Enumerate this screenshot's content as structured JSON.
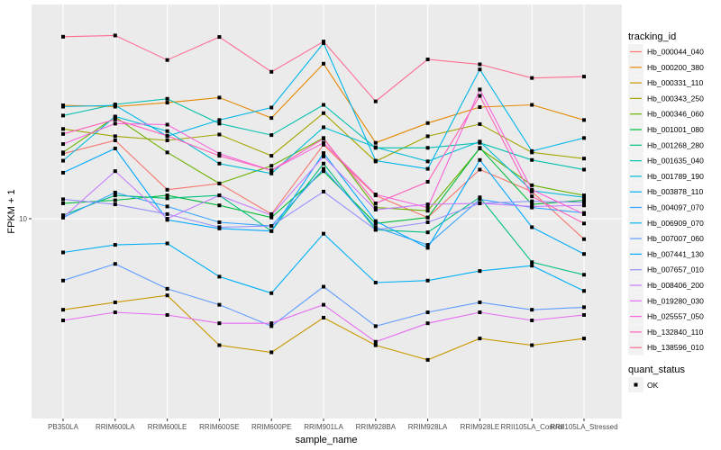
{
  "chart_data": {
    "type": "line",
    "title": "",
    "xlabel": "sample_name",
    "ylabel": "FPKM + 1",
    "y_scale": "log10",
    "y_ticks": [
      10
    ],
    "y_tick_labels": [
      "10"
    ],
    "grid": true,
    "legend_placement": "right",
    "categories": [
      "PB350LA",
      "RRIM600LA",
      "RRIM600LE",
      "RRIM600SE",
      "RRIM600PE",
      "RRIM901LA",
      "RRIM928BA",
      "RRIM928LA",
      "RRIM928LE",
      "RRII105LA_Control",
      "RRII105LA_Stressed"
    ],
    "legend": {
      "color_title": "tracking_id",
      "shape_title": "quant_status",
      "shape_entries": [
        "OK"
      ]
    },
    "series": [
      {
        "name": "Hb_000044_040",
        "color": "#F8766D",
        "values": [
          17.4,
          19.5,
          12.8,
          13.5,
          10.4,
          18.8,
          12.2,
          10.1,
          15.2,
          12.6,
          8.4
        ]
      },
      {
        "name": "Hb_000200_380",
        "color": "#E58700",
        "values": [
          26.3,
          26.0,
          26.9,
          28.1,
          23.6,
          37.5,
          19.1,
          22.6,
          25.9,
          26.4,
          23.2
        ]
      },
      {
        "name": "Hb_000331_110",
        "color": "#C99800",
        "values": [
          4.6,
          4.9,
          5.2,
          3.4,
          3.2,
          4.3,
          3.4,
          3.0,
          3.6,
          3.4,
          3.6
        ]
      },
      {
        "name": "Hb_000343_250",
        "color": "#A3A500",
        "values": [
          21.5,
          20.2,
          19.5,
          20.5,
          17.1,
          24.6,
          16.3,
          20.2,
          22.4,
          17.6,
          16.7
        ]
      },
      {
        "name": "Hb_000346_060",
        "color": "#6BB100",
        "values": [
          17.6,
          23.8,
          17.6,
          13.5,
          15.7,
          19.9,
          11.0,
          10.7,
          18.2,
          13.3,
          12.2
        ]
      },
      {
        "name": "Hb_001001_080",
        "color": "#00BA38",
        "values": [
          11.4,
          11.7,
          12.2,
          11.2,
          10.1,
          15.0,
          9.6,
          10.1,
          18.3,
          11.3,
          11.7
        ]
      },
      {
        "name": "Hb_001268_280",
        "color": "#00BF7D",
        "values": [
          10.3,
          12.2,
          11.9,
          12.2,
          9.0,
          16.0,
          9.1,
          8.9,
          12.0,
          6.9,
          6.2
        ]
      },
      {
        "name": "Hb_001635_040",
        "color": "#00C0AF",
        "values": [
          24.1,
          26.5,
          27.8,
          22.5,
          20.4,
          26.4,
          18.3,
          18.3,
          19.1,
          16.5,
          15.2
        ]
      },
      {
        "name": "Hb_001789_190",
        "color": "#00BCD8",
        "values": [
          16.4,
          23.9,
          21.1,
          16.0,
          14.7,
          21.8,
          18.4,
          16.3,
          19.3,
          12.7,
          12.0
        ]
      },
      {
        "name": "Hb_003878_110",
        "color": "#00B0F6",
        "values": [
          7.5,
          8.0,
          8.1,
          6.1,
          5.3,
          8.8,
          5.8,
          5.9,
          6.4,
          6.7,
          5.4
        ]
      },
      {
        "name": "Hb_004097_070",
        "color": "#35A2FF",
        "values": [
          10.1,
          12.5,
          11.1,
          9.7,
          9.4,
          15.3,
          9.3,
          8.0,
          11.8,
          11.0,
          10.5
        ]
      },
      {
        "name": "Hb_006909_070",
        "color": "#00B6EB",
        "values": [
          26.0,
          26.3,
          20.2,
          23.2,
          25.8,
          44.7,
          16.4,
          15.3,
          35.7,
          17.8,
          19.9
        ]
      },
      {
        "name": "Hb_007007_060",
        "color": "#619CFF",
        "values": [
          5.9,
          6.8,
          5.5,
          4.8,
          4.0,
          5.6,
          4.0,
          4.5,
          4.9,
          4.6,
          4.7
        ]
      },
      {
        "name": "Hb_007441_130",
        "color": "#00A9FF",
        "values": [
          14.8,
          18.2,
          9.9,
          9.2,
          9.0,
          17.5,
          9.8,
          7.8,
          16.5,
          9.3,
          7.4
        ]
      },
      {
        "name": "Hb_007657_010",
        "color": "#9590FF",
        "values": [
          11.8,
          11.3,
          10.4,
          9.3,
          9.4,
          12.6,
          9.1,
          9.7,
          11.4,
          11.6,
          11.5
        ]
      },
      {
        "name": "Hb_008406_200",
        "color": "#C77CFF",
        "values": [
          10.1,
          15.0,
          10.0,
          12.2,
          10.3,
          17.0,
          10.8,
          11.3,
          11.4,
          11.1,
          11.2
        ]
      },
      {
        "name": "Hb_019280_030",
        "color": "#E76BF3",
        "values": [
          4.2,
          4.5,
          4.4,
          4.1,
          4.1,
          4.8,
          3.5,
          4.1,
          4.5,
          4.2,
          4.4
        ]
      },
      {
        "name": "Hb_025557_050",
        "color": "#FA62DB",
        "values": [
          18.9,
          22.5,
          22.3,
          17.4,
          15.1,
          19.1,
          12.3,
          11.0,
          30.1,
          12.8,
          10.4
        ]
      },
      {
        "name": "Hb_132840_110",
        "color": "#FF62BC",
        "values": [
          20.6,
          23.3,
          20.3,
          17.1,
          15.1,
          19.8,
          11.4,
          13.7,
          28.5,
          12.1,
          9.6
        ]
      },
      {
        "name": "Hb_138596_010",
        "color": "#FF6C91",
        "values": [
          47.2,
          47.7,
          38.7,
          47.1,
          35.0,
          45.3,
          27.2,
          38.9,
          37.3,
          33.2,
          33.6
        ]
      }
    ]
  }
}
